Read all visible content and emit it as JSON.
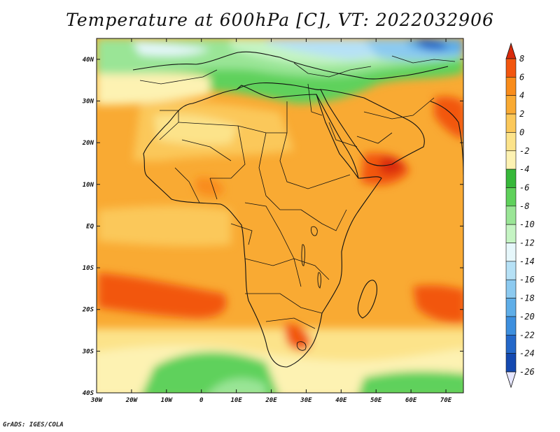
{
  "title": "Temperature at 600hPa [C], VT: 2022032906",
  "credit": "GrADS: IGES/COLA",
  "map": {
    "lon_range": [
      -30,
      75
    ],
    "lat_range": [
      -40,
      45
    ],
    "lon_ticks": [
      {
        "value": -30,
        "label": "30W"
      },
      {
        "value": -20,
        "label": "20W"
      },
      {
        "value": -10,
        "label": "10W"
      },
      {
        "value": 0,
        "label": "0"
      },
      {
        "value": 10,
        "label": "10E"
      },
      {
        "value": 20,
        "label": "20E"
      },
      {
        "value": 30,
        "label": "30E"
      },
      {
        "value": 40,
        "label": "40E"
      },
      {
        "value": 50,
        "label": "50E"
      },
      {
        "value": 60,
        "label": "60E"
      },
      {
        "value": 70,
        "label": "70E"
      }
    ],
    "lat_ticks": [
      {
        "value": 40,
        "label": "40N"
      },
      {
        "value": 30,
        "label": "30N"
      },
      {
        "value": 20,
        "label": "20N"
      },
      {
        "value": 10,
        "label": "10N"
      },
      {
        "value": 0,
        "label": "EQ"
      },
      {
        "value": -10,
        "label": "10S"
      },
      {
        "value": -20,
        "label": "20S"
      },
      {
        "value": -30,
        "label": "30S"
      },
      {
        "value": -40,
        "label": "40S"
      }
    ]
  },
  "colorbar": {
    "labels": [
      "8",
      "6",
      "4",
      "2",
      "0",
      "-2",
      "-4",
      "-6",
      "-8",
      "-10",
      "-12",
      "-14",
      "-16",
      "-18",
      "-20",
      "-22",
      "-24",
      "-26"
    ],
    "colors": [
      "#d92a0c",
      "#f2560f",
      "#f98c1b",
      "#f9aa33",
      "#fbc85a",
      "#fce38a",
      "#fdf2b2",
      "#37b83a",
      "#5fd15b",
      "#9ae596",
      "#c5f4c3",
      "#e6f7fb",
      "#b6e1f6",
      "#8ccaf0",
      "#5faee8",
      "#3d8fde",
      "#2468c9",
      "#1449b0",
      "#0b2a8a"
    ]
  }
}
